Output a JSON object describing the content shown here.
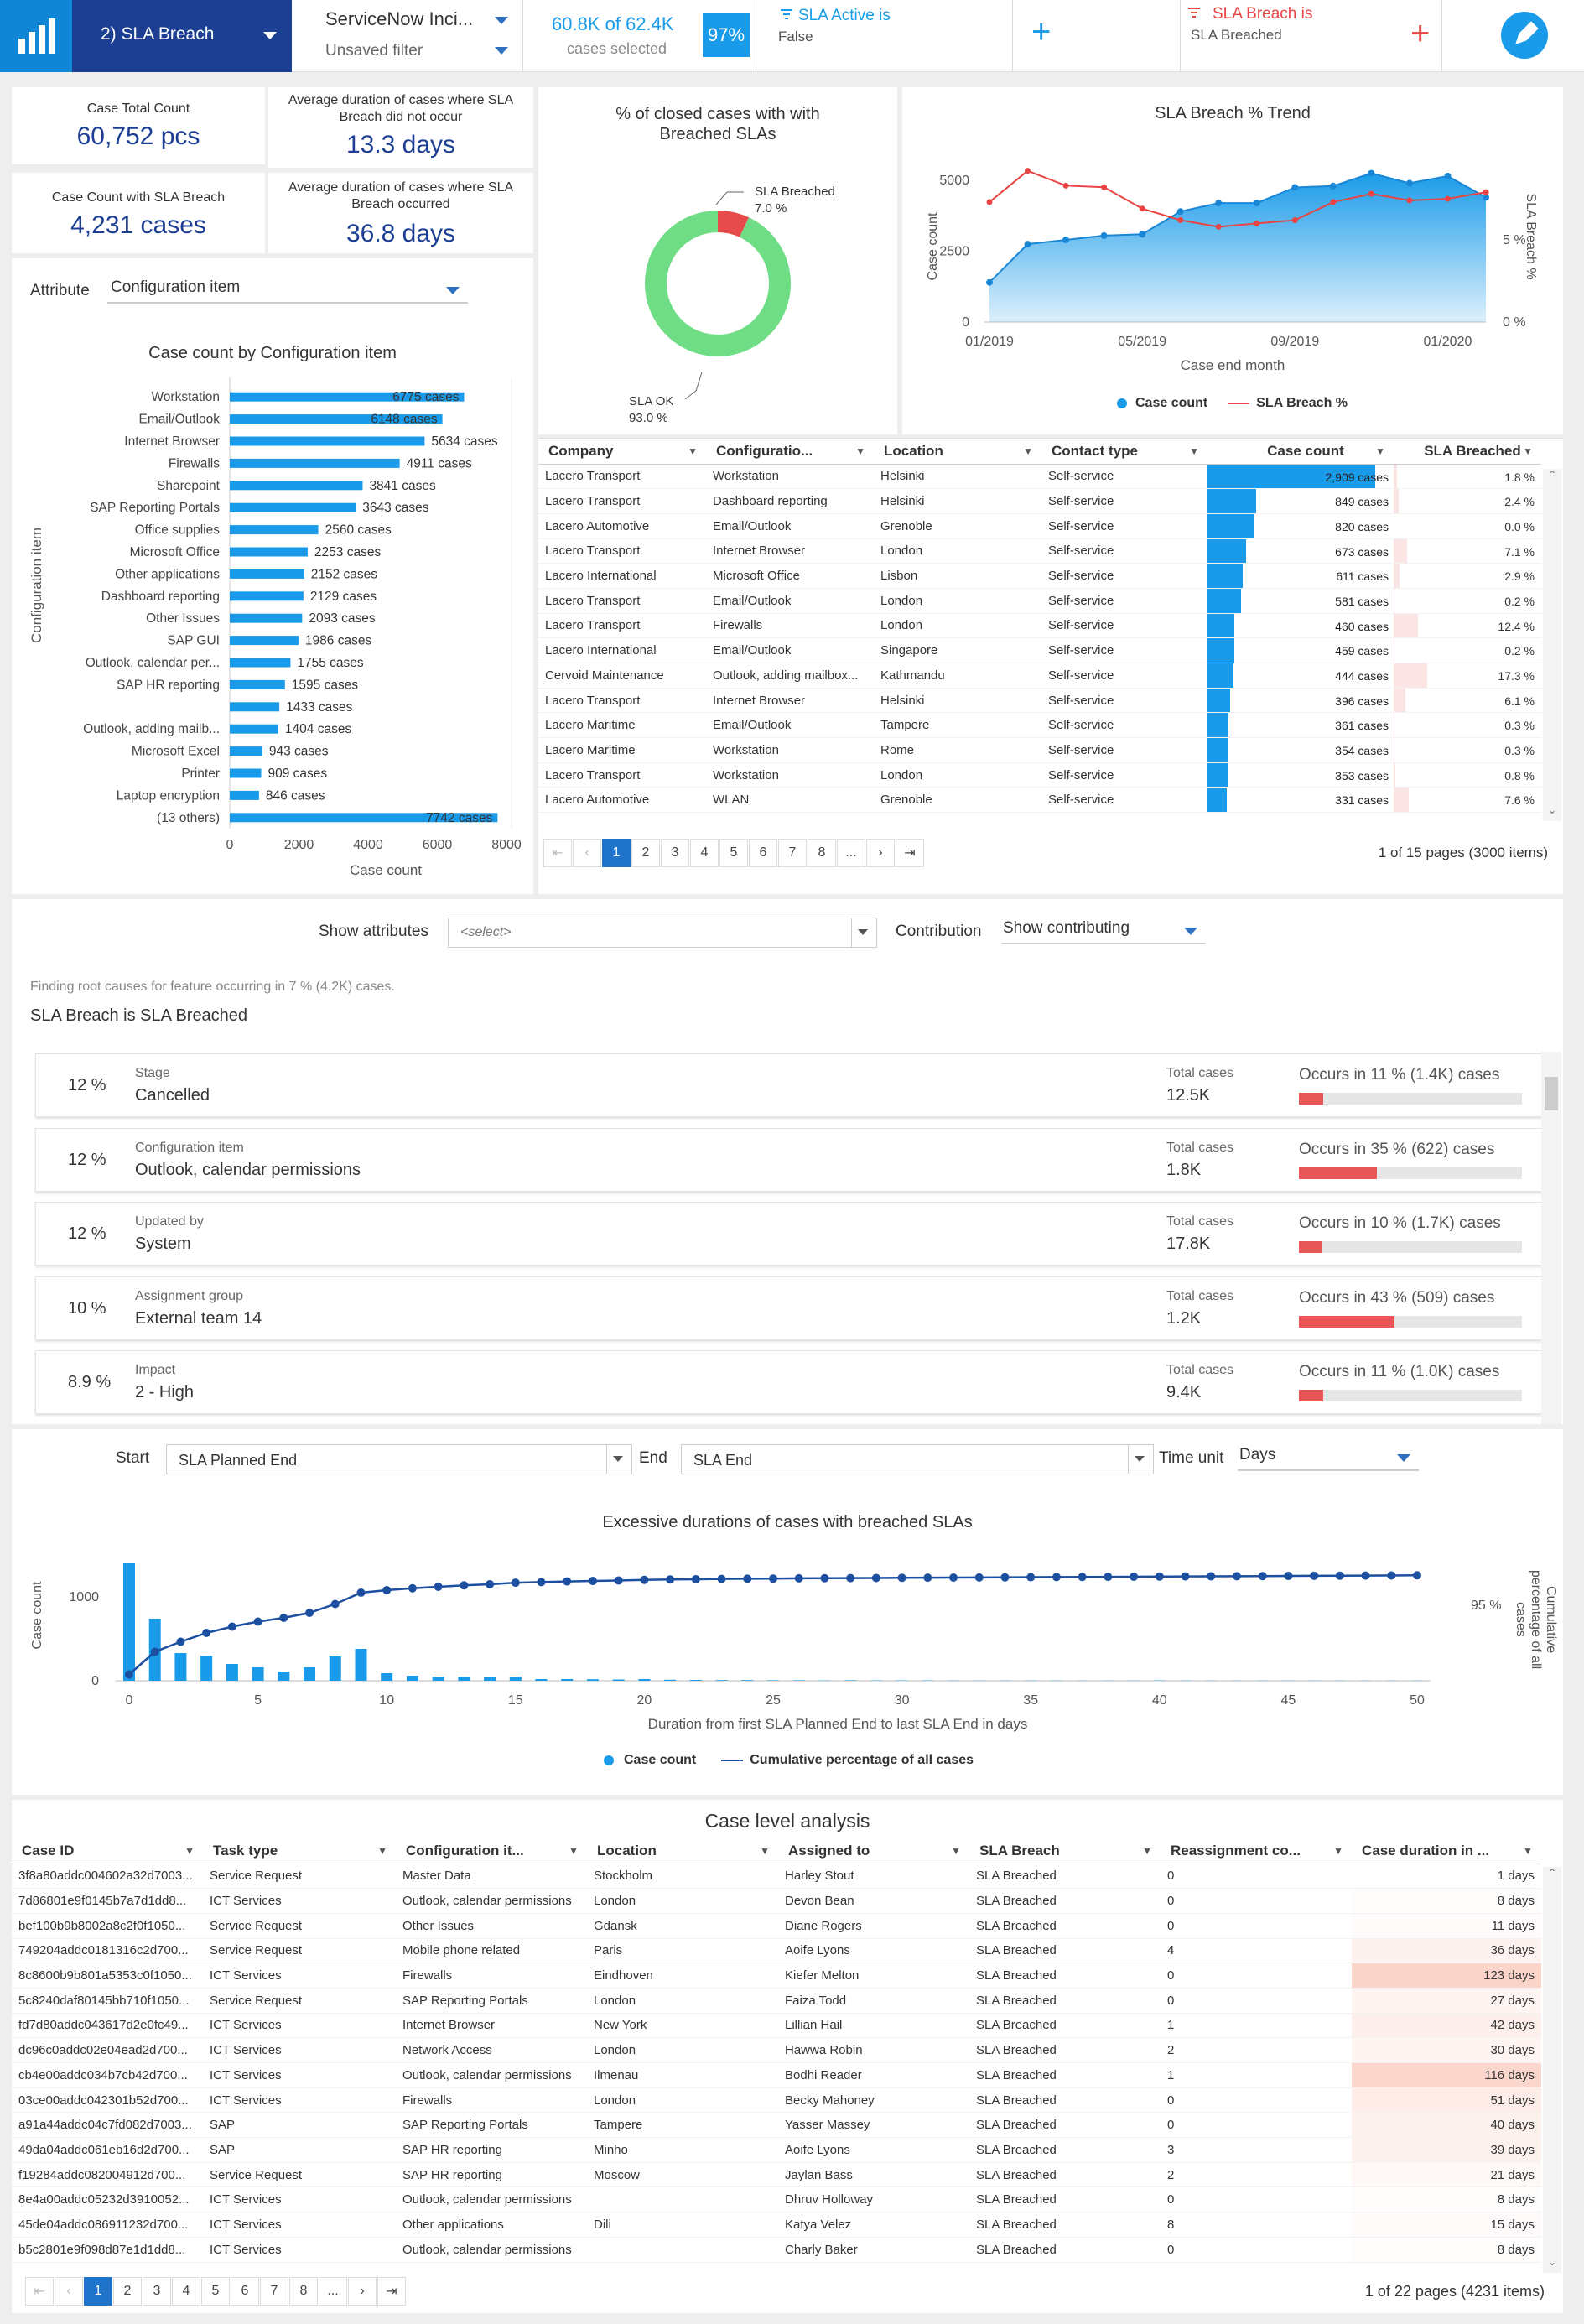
{
  "header": {
    "sheet": "2) SLA Breach",
    "model_name": "ServiceNow Inci...",
    "filter_state": "Unsaved filter",
    "selection": {
      "count_text": "60.8K of 62.4K",
      "sub": "cases selected",
      "pct": "97%"
    },
    "filters": [
      {
        "title": "SLA Active is",
        "value": "False",
        "color": "#16a0e8"
      },
      {
        "title": "SLA Breach is",
        "value": "SLA Breached",
        "color": "#e84444"
      }
    ],
    "add": "+"
  },
  "kpis": [
    {
      "label": "Case Total Count",
      "value": "60,752 pcs"
    },
    {
      "label": "Average duration of cases where SLA Breach did not occur",
      "value": "13.3 days"
    },
    {
      "label": "Case Count with SLA Breach",
      "value": "4,231 cases"
    },
    {
      "label": "Average duration of cases where SLA Breach occurred",
      "value": "36.8 days"
    }
  ],
  "donut": {
    "title": "% of closed cases with with Breached SLAs",
    "chart_data": {
      "type": "pie",
      "slices": [
        {
          "label": "SLA Breached",
          "value": 7.0,
          "display": "7.0 %",
          "color": "#e84b4b"
        },
        {
          "label": "SLA OK",
          "value": 93.0,
          "display": "93.0 %",
          "color": "#6fdc86"
        }
      ]
    }
  },
  "trend": {
    "title": "SLA Breach % Trend",
    "chart_data": {
      "type": "area",
      "xlabel": "Case end month",
      "ylabel": "Case count",
      "y2label": "SLA Breach %",
      "x_ticks": [
        "01/2019",
        "05/2019",
        "09/2019",
        "01/2020"
      ],
      "y_ticks": [
        "0",
        "2500",
        "5000"
      ],
      "y2_ticks": [
        "0 %",
        "5 %"
      ],
      "ylim": [
        0,
        5800
      ],
      "y2lim": [
        0,
        10
      ],
      "x": [
        "01/2019",
        "02/2019",
        "03/2019",
        "04/2019",
        "05/2019",
        "06/2019",
        "07/2019",
        "08/2019",
        "09/2019",
        "10/2019",
        "11/2019",
        "12/2019",
        "01/2020",
        "02/2020"
      ],
      "series": [
        {
          "name": "Case count",
          "type": "area",
          "color": "#1a9be9",
          "values": [
            1400,
            2750,
            2900,
            3050,
            3100,
            3900,
            4200,
            4200,
            4750,
            4800,
            5250,
            4900,
            5150,
            4400
          ]
        },
        {
          "name": "SLA Breach %",
          "type": "line",
          "color": "#e84444",
          "values": [
            7.3,
            9.2,
            8.3,
            8.2,
            6.9,
            6.2,
            5.8,
            6.0,
            6.2,
            7.3,
            7.8,
            7.4,
            7.5,
            7.9
          ]
        }
      ]
    }
  },
  "attribute": {
    "label": "Attribute",
    "value": "Configuration item"
  },
  "cibar": {
    "title": "Case count by Configuration item",
    "chart_data": {
      "type": "bar",
      "orientation": "horizontal",
      "xlabel": "Case count",
      "ylabel": "Configuration item",
      "x_ticks": [
        "0",
        "2000",
        "4000",
        "6000",
        "8000"
      ],
      "xlim": [
        0,
        8000
      ],
      "categories": [
        "Workstation",
        "Email/Outlook",
        "Internet Browser",
        "Firewalls",
        "Sharepoint",
        "SAP Reporting Portals",
        "Office supplies",
        "Microsoft Office",
        "Other applications",
        "Dashboard reporting",
        "Other Issues",
        "SAP GUI",
        "Outlook, calendar per...",
        "SAP HR reporting",
        "",
        "Outlook, adding mailb...",
        "Microsoft Excel",
        "Printer",
        "Laptop encryption",
        "(13 others)"
      ],
      "values": [
        6775,
        6148,
        5634,
        4911,
        3841,
        3643,
        2560,
        2253,
        2152,
        2129,
        2093,
        1986,
        1755,
        1595,
        1433,
        1404,
        943,
        909,
        846,
        7742
      ],
      "labels": [
        "6775 cases",
        "6148 cases",
        "5634 cases",
        "4911 cases",
        "3841 cases",
        "3643 cases",
        "2560 cases",
        "2253 cases",
        "2152 cases",
        "2129 cases",
        "2093 cases",
        "1986 cases",
        "1755 cases",
        "1595 cases",
        "1433 cases",
        "1404 cases",
        "943 cases",
        "909 cases",
        "846 cases",
        "7742 cases"
      ]
    }
  },
  "case_table": {
    "columns": [
      "Company",
      "Configuratio...",
      "Location",
      "Contact type",
      "Case count",
      "SLA Breached"
    ],
    "max_count": 2909,
    "rows": [
      [
        "Lacero Transport",
        "Workstation",
        "Helsinki",
        "Self-service",
        "2,909 cases",
        2909,
        "1.8 %",
        1.8
      ],
      [
        "Lacero Transport",
        "Dashboard reporting",
        "Helsinki",
        "Self-service",
        "849 cases",
        849,
        "2.4 %",
        2.4
      ],
      [
        "Lacero Automotive",
        "Email/Outlook",
        "Grenoble",
        "Self-service",
        "820 cases",
        820,
        "0.0 %",
        0.0
      ],
      [
        "Lacero Transport",
        "Internet Browser",
        "London",
        "Self-service",
        "673 cases",
        673,
        "7.1 %",
        7.1
      ],
      [
        "Lacero International",
        "Microsoft Office",
        "Lisbon",
        "Self-service",
        "611 cases",
        611,
        "2.9 %",
        2.9
      ],
      [
        "Lacero Transport",
        "Email/Outlook",
        "London",
        "Self-service",
        "581 cases",
        581,
        "0.2 %",
        0.2
      ],
      [
        "Lacero Transport",
        "Firewalls",
        "London",
        "Self-service",
        "460 cases",
        460,
        "12.4 %",
        12.4
      ],
      [
        "Lacero International",
        "Email/Outlook",
        "Singapore",
        "Self-service",
        "459 cases",
        459,
        "0.2 %",
        0.2
      ],
      [
        "Cervoid Maintenance",
        "Outlook, adding mailbox...",
        "Kathmandu",
        "Self-service",
        "444 cases",
        444,
        "17.3 %",
        17.3
      ],
      [
        "Lacero Transport",
        "Internet Browser",
        "Helsinki",
        "Self-service",
        "396 cases",
        396,
        "6.1 %",
        6.1
      ],
      [
        "Lacero Maritime",
        "Email/Outlook",
        "Tampere",
        "Self-service",
        "361 cases",
        361,
        "0.3 %",
        0.3
      ],
      [
        "Lacero Maritime",
        "Workstation",
        "Rome",
        "Self-service",
        "354 cases",
        354,
        "0.3 %",
        0.3
      ],
      [
        "Lacero Transport",
        "Workstation",
        "London",
        "Self-service",
        "353 cases",
        353,
        "0.8 %",
        0.8
      ],
      [
        "Lacero Automotive",
        "WLAN",
        "Grenoble",
        "Self-service",
        "331 cases",
        331,
        "7.6 %",
        7.6
      ]
    ],
    "pages": [
      "1",
      "2",
      "3",
      "4",
      "5",
      "6",
      "7",
      "8",
      "..."
    ],
    "page_info": "1 of 15 pages (3000 items)"
  },
  "root_cause": {
    "show_attributes_label": "Show attributes",
    "show_attributes_value": "<select>",
    "contribution_label": "Contribution",
    "contribution_value": "Show contributing",
    "finding": "Finding root causes for feature occurring in 7 % (4.2K) cases.",
    "feature": "SLA Breach is SLA Breached",
    "total_label": "Total cases",
    "cards": [
      {
        "pct": "12 %",
        "attr": "Stage",
        "value": "Cancelled",
        "total": "12.5K",
        "occurs": "Occurs in 11 % (1.4K) cases",
        "ratio": 11
      },
      {
        "pct": "12 %",
        "attr": "Configuration item",
        "value": "Outlook, calendar permissions",
        "total": "1.8K",
        "occurs": "Occurs in 35 % (622) cases",
        "ratio": 35
      },
      {
        "pct": "12 %",
        "attr": "Updated by",
        "value": "System",
        "total": "17.8K",
        "occurs": "Occurs in 10 % (1.7K) cases",
        "ratio": 10
      },
      {
        "pct": "10 %",
        "attr": "Assignment group",
        "value": "External team 14",
        "total": "1.2K",
        "occurs": "Occurs in 43 % (509) cases",
        "ratio": 43
      },
      {
        "pct": "8.9 %",
        "attr": "Impact",
        "value": "2 - High",
        "total": "9.4K",
        "occurs": "Occurs in 11 % (1.0K) cases",
        "ratio": 11
      }
    ]
  },
  "duration": {
    "start_label": "Start",
    "start_value": "SLA Planned End",
    "end_label": "End",
    "end_value": "SLA End",
    "unit_label": "Time unit",
    "unit_value": "Days",
    "title": "Excessive durations of cases with breached SLAs",
    "chart_data": {
      "type": "bar",
      "xlabel": "Duration from first SLA Planned End to last SLA End in days",
      "ylabel": "Case count",
      "y2label": "Cumulative percentage of all cases",
      "x_ticks": [
        "0",
        "5",
        "10",
        "15",
        "20",
        "25",
        "30",
        "35",
        "40",
        "45",
        "50"
      ],
      "y_ticks": [
        "0",
        "1000"
      ],
      "y2_ticks": [
        "95 %"
      ],
      "ylim": [
        0,
        1500
      ],
      "y2lim": [
        0,
        100
      ],
      "x": [
        0,
        1,
        2,
        3,
        4,
        5,
        6,
        7,
        8,
        9,
        10,
        11,
        12,
        13,
        14,
        15,
        16,
        17,
        18,
        19,
        20,
        21,
        22,
        23,
        24,
        25,
        26,
        27,
        28,
        29,
        30,
        31,
        32,
        33,
        34,
        35,
        36,
        37,
        38,
        39,
        40,
        41,
        42,
        43,
        44,
        45,
        46,
        47,
        48,
        49,
        50
      ],
      "series": [
        {
          "name": "Case count",
          "type": "bar",
          "color": "#1a9be9",
          "values": [
            1400,
            740,
            330,
            300,
            200,
            160,
            110,
            160,
            290,
            380,
            90,
            60,
            50,
            45,
            40,
            50,
            20,
            20,
            18,
            15,
            20,
            12,
            10,
            8,
            8,
            6,
            6,
            4,
            6,
            4,
            4,
            4,
            3,
            3,
            3,
            3,
            3,
            2,
            2,
            2,
            4,
            3,
            2,
            2,
            2,
            2,
            2,
            2,
            2,
            2,
            2
          ]
        },
        {
          "name": "Cumulative percentage of all cases",
          "type": "line",
          "color": "#1c4fa0",
          "values": [
            5,
            23,
            31,
            38,
            43,
            47,
            50,
            54,
            61,
            70,
            72,
            73.5,
            74.7,
            75.8,
            76.7,
            77.9,
            78.4,
            78.9,
            79.3,
            79.7,
            80.2,
            80.5,
            80.7,
            80.9,
            81.1,
            81.2,
            81.4,
            81.5,
            81.6,
            81.7,
            81.8,
            81.9,
            82,
            82.1,
            82.2,
            82.3,
            82.4,
            82.5,
            82.6,
            82.7,
            82.8,
            82.9,
            83,
            83.1,
            83.2,
            83.3,
            83.4,
            83.5,
            83.6,
            83.7,
            83.8
          ]
        }
      ]
    }
  },
  "case_level": {
    "title": "Case level analysis",
    "columns": [
      "Case ID",
      "Task type",
      "Configuration it...",
      "Location",
      "Assigned to",
      "SLA Breach",
      "Reassignment co...",
      "Case duration in ..."
    ],
    "rows": [
      [
        "3f8a80addc004602a32d7003...",
        "Service Request",
        "Master Data",
        "Stockholm",
        "Harley Stout",
        "SLA Breached",
        "0",
        "1 days",
        1
      ],
      [
        "7d86801e9f0145b7a7d1dd8...",
        "ICT Services",
        "Outlook, calendar permissions",
        "London",
        "Devon Bean",
        "SLA Breached",
        "0",
        "8 days",
        8
      ],
      [
        "bef100b9b8002a8c2f0f1050...",
        "Service Request",
        "Other Issues",
        "Gdansk",
        "Diane Rogers",
        "SLA Breached",
        "0",
        "11 days",
        11
      ],
      [
        "749204addc0181316c2d700...",
        "Service Request",
        "Mobile phone related",
        "Paris",
        "Aoife Lyons",
        "SLA Breached",
        "4",
        "36 days",
        36
      ],
      [
        "8c8600b9b801a5353c0f1050...",
        "ICT Services",
        "Firewalls",
        "Eindhoven",
        "Kiefer Melton",
        "SLA Breached",
        "0",
        "123 days",
        123
      ],
      [
        "5c8240daf80145bb710f1050...",
        "Service Request",
        "SAP Reporting Portals",
        "London",
        "Faiza Todd",
        "SLA Breached",
        "0",
        "27 days",
        27
      ],
      [
        "fd7d80addc043617d2e0fc49...",
        "ICT Services",
        "Internet Browser",
        "New York",
        "Lillian Hail",
        "SLA Breached",
        "1",
        "42 days",
        42
      ],
      [
        "dc96c0addc02e04ead2d700...",
        "ICT Services",
        "Network Access",
        "London",
        "Hawwa Robin",
        "SLA Breached",
        "2",
        "30 days",
        30
      ],
      [
        "cb4e00addc034b7cb42d700...",
        "ICT Services",
        "Outlook, calendar permissions",
        "Ilmenau",
        "Bodhi Reader",
        "SLA Breached",
        "1",
        "116 days",
        116
      ],
      [
        "03ce00addc042301b52d700...",
        "ICT Services",
        "Firewalls",
        "London",
        "Becky Mahoney",
        "SLA Breached",
        "0",
        "51 days",
        51
      ],
      [
        "a91a44addc04c7fd082d7003...",
        "SAP",
        "SAP Reporting Portals",
        "Tampere",
        "Yasser Massey",
        "SLA Breached",
        "0",
        "40 days",
        40
      ],
      [
        "49da04addc061eb16d2d700...",
        "SAP",
        "SAP HR reporting",
        "Minho",
        "Aoife Lyons",
        "SLA Breached",
        "3",
        "39 days",
        39
      ],
      [
        "f19284addc082004912d700...",
        "Service Request",
        "SAP HR reporting",
        "Moscow",
        "Jaylan Bass",
        "SLA Breached",
        "2",
        "21 days",
        21
      ],
      [
        "8e4a00addc05232d3910052...",
        "ICT Services",
        "Outlook, calendar permissions",
        "",
        "Dhruv Holloway",
        "SLA Breached",
        "0",
        "8 days",
        8
      ],
      [
        "45de04addc086911232d700...",
        "ICT Services",
        "Other applications",
        "Dili",
        "Katya Velez",
        "SLA Breached",
        "8",
        "15 days",
        15
      ],
      [
        "b5c2801e9f098d87e1d1dd8...",
        "ICT Services",
        "Outlook, calendar permissions",
        "",
        "Charly Baker",
        "SLA Breached",
        "0",
        "8 days",
        8
      ]
    ],
    "pages": [
      "1",
      "2",
      "3",
      "4",
      "5",
      "6",
      "7",
      "8",
      "..."
    ],
    "page_info": "1 of 22 pages (4231 items)"
  }
}
